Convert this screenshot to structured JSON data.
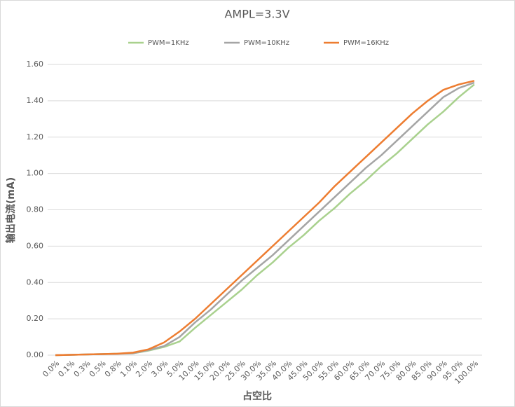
{
  "chart_data": {
    "type": "line",
    "title": "AMPL=3.3V",
    "x_label": "占空比",
    "y_label": "输出电流(mA)",
    "categories": [
      "0.0%",
      "0.1%",
      "0.3%",
      "0.5%",
      "0.8%",
      "1.0%",
      "2.0%",
      "3.0%",
      "5.0%",
      "10.0%",
      "15.0%",
      "20.0%",
      "25.0%",
      "30.0%",
      "35.0%",
      "40.0%",
      "45.0%",
      "50.0%",
      "55.0%",
      "60.0%",
      "65.0%",
      "70.0%",
      "75.0%",
      "80.0%",
      "85.0%",
      "90.0%",
      "95.0%",
      "100.0%"
    ],
    "series": [
      {
        "name": "PWM=1KHz",
        "color": "#a9d18e",
        "values": [
          0,
          0.002,
          0.004,
          0.006,
          0.008,
          0.01,
          0.025,
          0.045,
          0.075,
          0.15,
          0.22,
          0.29,
          0.36,
          0.44,
          0.51,
          0.59,
          0.66,
          0.74,
          0.81,
          0.89,
          0.96,
          1.04,
          1.11,
          1.19,
          1.27,
          1.34,
          1.42,
          1.49
        ]
      },
      {
        "name": "PWM=10KHz",
        "color": "#a5a5a5",
        "values": [
          0,
          0.002,
          0.004,
          0.006,
          0.007,
          0.01,
          0.028,
          0.05,
          0.1,
          0.18,
          0.25,
          0.33,
          0.41,
          0.48,
          0.55,
          0.63,
          0.71,
          0.79,
          0.87,
          0.95,
          1.03,
          1.1,
          1.18,
          1.26,
          1.34,
          1.42,
          1.47,
          1.5
        ]
      },
      {
        "name": "PWM=16KHz",
        "color": "#ed7d31",
        "values": [
          0,
          0.002,
          0.004,
          0.006,
          0.008,
          0.014,
          0.032,
          0.07,
          0.13,
          0.2,
          0.28,
          0.36,
          0.44,
          0.52,
          0.6,
          0.68,
          0.76,
          0.84,
          0.93,
          1.01,
          1.09,
          1.17,
          1.25,
          1.33,
          1.4,
          1.46,
          1.49,
          1.51
        ]
      }
    ],
    "ylim": [
      0,
      1.6
    ],
    "yticks": [
      {
        "value": 0,
        "label": "0.00"
      },
      {
        "value": 0.2,
        "label": "0.20"
      },
      {
        "value": 0.4,
        "label": "0.40"
      },
      {
        "value": 0.6,
        "label": "0.60"
      },
      {
        "value": 0.8,
        "label": "0.80"
      },
      {
        "value": 1.0,
        "label": "1.00"
      },
      {
        "value": 1.2,
        "label": "1.20"
      },
      {
        "value": 1.4,
        "label": "1.40"
      },
      {
        "value": 1.6,
        "label": "1.60"
      }
    ],
    "grid": true,
    "legend": "top"
  }
}
